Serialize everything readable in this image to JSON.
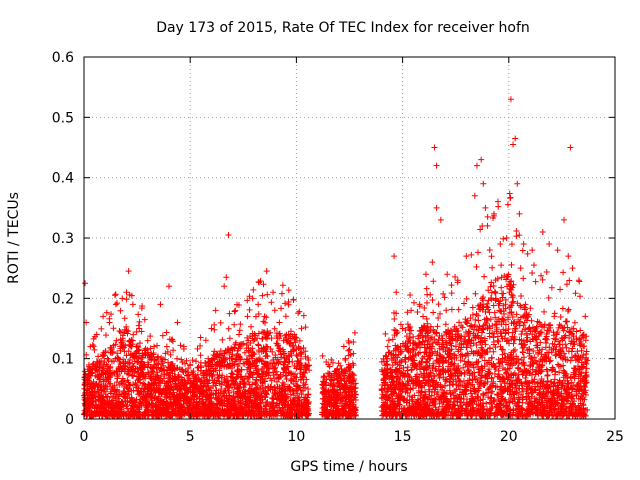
{
  "chart_data": {
    "type": "scatter",
    "title": "Day 173 of 2015, Rate Of TEC Index for receiver hofn",
    "xlabel": "GPS time / hours",
    "ylabel": "ROTI / TECUs",
    "xlim": [
      0,
      25
    ],
    "ylim": [
      0,
      0.6
    ],
    "xticks": [
      0,
      5,
      10,
      15,
      20,
      25
    ],
    "xtick_labels": [
      "0",
      "5",
      "10",
      "15",
      "20",
      "25"
    ],
    "yticks": [
      0,
      0.1,
      0.2,
      0.3,
      0.4,
      0.5,
      0.6
    ],
    "ytick_labels": [
      "0",
      "0.1",
      "0.2",
      "0.3",
      "0.4",
      "0.5",
      "0.6"
    ],
    "grid": true,
    "marker": "+",
    "series": [
      {
        "name": "ROTI",
        "color": "#ff0000",
        "note": "dense per-satellite ROTI samples; coverage gaps ~10.6-11.2 h and ~13.0-14.0 h",
        "points": [
          [
            0.05,
            0.225
          ],
          [
            0.1,
            0.16
          ],
          [
            0.3,
            0.12
          ],
          [
            0.6,
            0.14
          ],
          [
            0.9,
            0.17
          ],
          [
            1.2,
            0.16
          ],
          [
            1.5,
            0.19
          ],
          [
            1.8,
            0.2
          ],
          [
            2.0,
            0.21
          ],
          [
            2.1,
            0.245
          ],
          [
            2.3,
            0.19
          ],
          [
            2.6,
            0.15
          ],
          [
            3.0,
            0.13
          ],
          [
            3.3,
            0.12
          ],
          [
            3.6,
            0.19
          ],
          [
            3.9,
            0.12
          ],
          [
            4.0,
            0.22
          ],
          [
            4.4,
            0.16
          ],
          [
            4.7,
            0.12
          ],
          [
            5.0,
            0.09
          ],
          [
            5.5,
            0.08
          ],
          [
            6.0,
            0.15
          ],
          [
            6.2,
            0.18
          ],
          [
            6.6,
            0.22
          ],
          [
            6.7,
            0.235
          ],
          [
            6.8,
            0.305
          ],
          [
            7.3,
            0.14
          ],
          [
            7.7,
            0.17
          ],
          [
            8.2,
            0.19
          ],
          [
            8.5,
            0.17
          ],
          [
            8.6,
            0.245
          ],
          [
            8.9,
            0.21
          ],
          [
            9.2,
            0.16
          ],
          [
            9.6,
            0.13
          ],
          [
            9.9,
            0.14
          ],
          [
            11.5,
            0.09
          ],
          [
            11.9,
            0.08
          ],
          [
            12.3,
            0.1
          ],
          [
            12.5,
            0.115
          ],
          [
            14.3,
            0.12
          ],
          [
            14.6,
            0.27
          ],
          [
            14.7,
            0.21
          ],
          [
            15.0,
            0.15
          ],
          [
            15.4,
            0.18
          ],
          [
            15.8,
            0.19
          ],
          [
            16.1,
            0.24
          ],
          [
            16.4,
            0.26
          ],
          [
            16.5,
            0.45
          ],
          [
            16.6,
            0.42
          ],
          [
            16.6,
            0.35
          ],
          [
            16.8,
            0.33
          ],
          [
            17.1,
            0.24
          ],
          [
            17.6,
            0.23
          ],
          [
            18.0,
            0.27
          ],
          [
            18.4,
            0.37
          ],
          [
            18.5,
            0.42
          ],
          [
            18.7,
            0.43
          ],
          [
            18.8,
            0.39
          ],
          [
            18.9,
            0.35
          ],
          [
            19.0,
            0.32
          ],
          [
            19.3,
            0.34
          ],
          [
            19.6,
            0.29
          ],
          [
            19.9,
            0.3
          ],
          [
            20.1,
            0.53
          ],
          [
            20.2,
            0.455
          ],
          [
            20.3,
            0.465
          ],
          [
            20.4,
            0.39
          ],
          [
            20.5,
            0.34
          ],
          [
            20.7,
            0.29
          ],
          [
            21.1,
            0.28
          ],
          [
            21.6,
            0.31
          ],
          [
            21.9,
            0.29
          ],
          [
            22.3,
            0.28
          ],
          [
            22.6,
            0.33
          ],
          [
            22.8,
            0.27
          ],
          [
            22.9,
            0.45
          ],
          [
            23.0,
            0.25
          ],
          [
            23.3,
            0.23
          ],
          [
            23.6,
            0.17
          ]
        ]
      }
    ],
    "coverage_segments": [
      {
        "start": 0.0,
        "end": 10.6,
        "base_max": 0.13
      },
      {
        "start": 11.2,
        "end": 12.8,
        "base_max": 0.07
      },
      {
        "start": 14.0,
        "end": 23.7,
        "base_max": 0.15
      }
    ]
  }
}
